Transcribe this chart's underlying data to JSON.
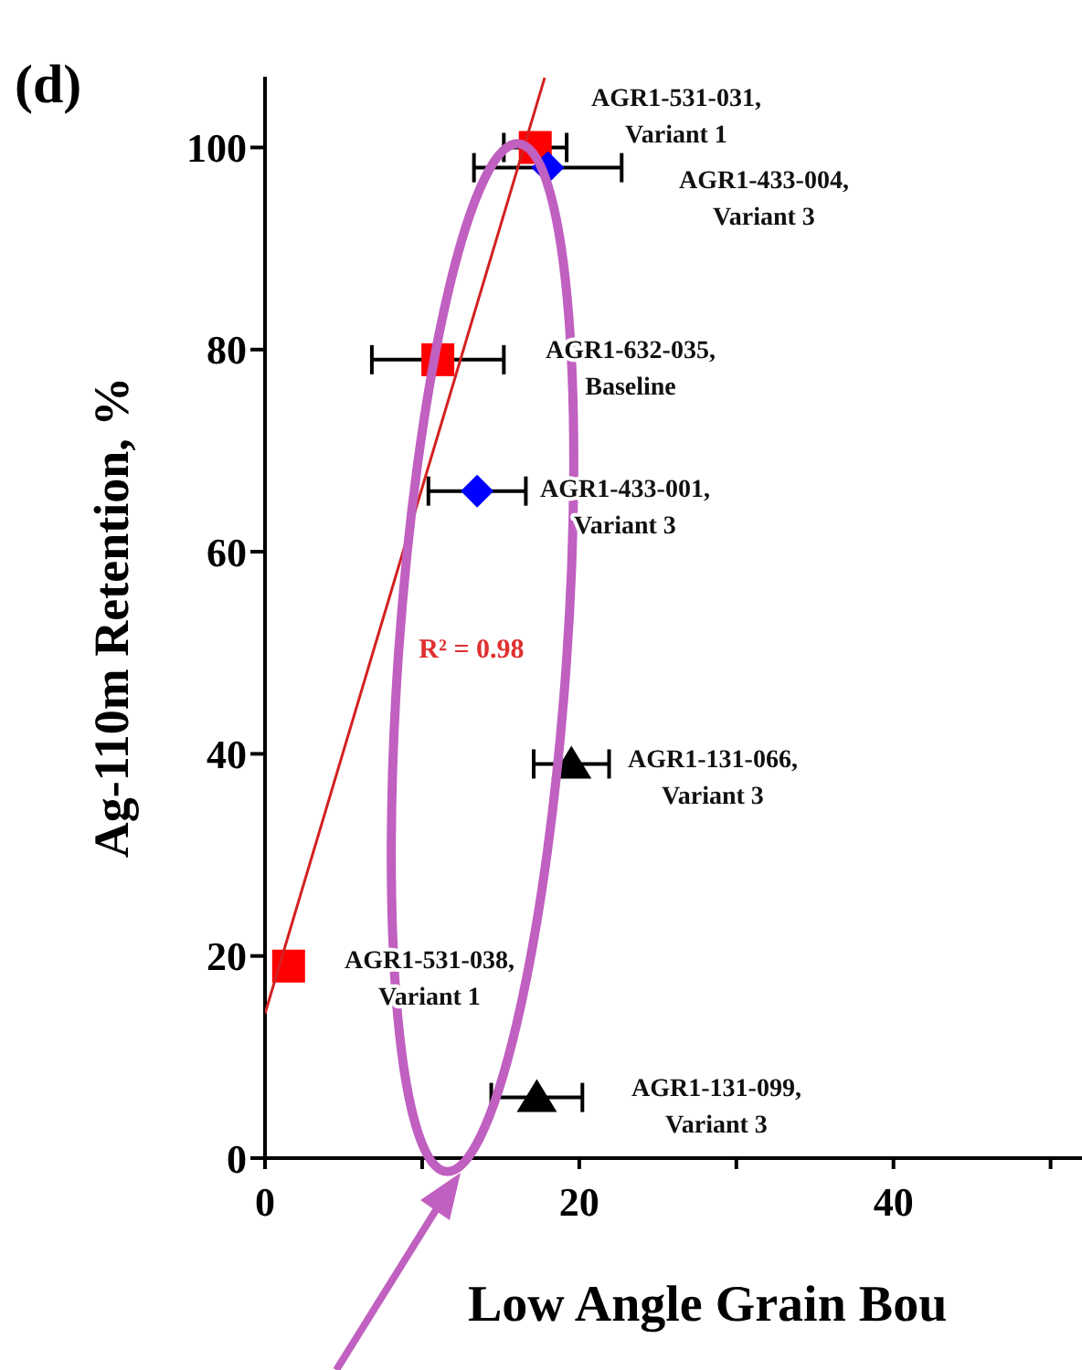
{
  "chart_data": {
    "type": "scatter",
    "title": "(d)",
    "xlabel": "Low Angle Grain Bou",
    "ylabel": "Ag-110m Retention, %",
    "xlim": [
      0,
      52
    ],
    "xticks": [
      0,
      {
        "value": 10,
        "label": null
      },
      20,
      {
        "value": 30,
        "label": null
      },
      40,
      {
        "value": 50,
        "label": null
      }
    ],
    "ylim": [
      0,
      107
    ],
    "yticks": [
      0,
      20,
      40,
      60,
      80,
      100
    ],
    "grid": false,
    "series": [
      {
        "color": "#ff0000",
        "marker": "square",
        "x": [
          1.5,
          11,
          17.2
        ],
        "values": [
          19,
          79,
          100
        ],
        "xerrors": [
          null,
          4.2,
          2
        ]
      },
      {
        "color": "#0000ff",
        "marker": "diamond",
        "x": [
          13.5,
          18
        ],
        "values": [
          66,
          98
        ],
        "xerrors": [
          3.1,
          4.7
        ]
      },
      {
        "color": "#000000",
        "marker": "triangle",
        "x": [
          19.5,
          17.3
        ],
        "values": [
          39,
          6
        ],
        "xerrors": [
          2.4,
          2.9
        ]
      },
      {
        "type": "line",
        "color": "#d42020",
        "marker": "none",
        "x": [
          0,
          17.8
        ],
        "values": [
          14.3,
          106.9
        ]
      }
    ],
    "annotations": [
      "AGR1-531-031,\nVariant 1",
      "AGR1-433-004,\nVariant 3",
      "AGR1-632-035,\nBaseline",
      "AGR1-433-001,\nVariant 3",
      "AGR1-131-066,\nVariant 3",
      "AGR1-531-038,\nVariant 1",
      "AGR1-131-099,\nVariant 3",
      "R² = 0.98"
    ]
  }
}
